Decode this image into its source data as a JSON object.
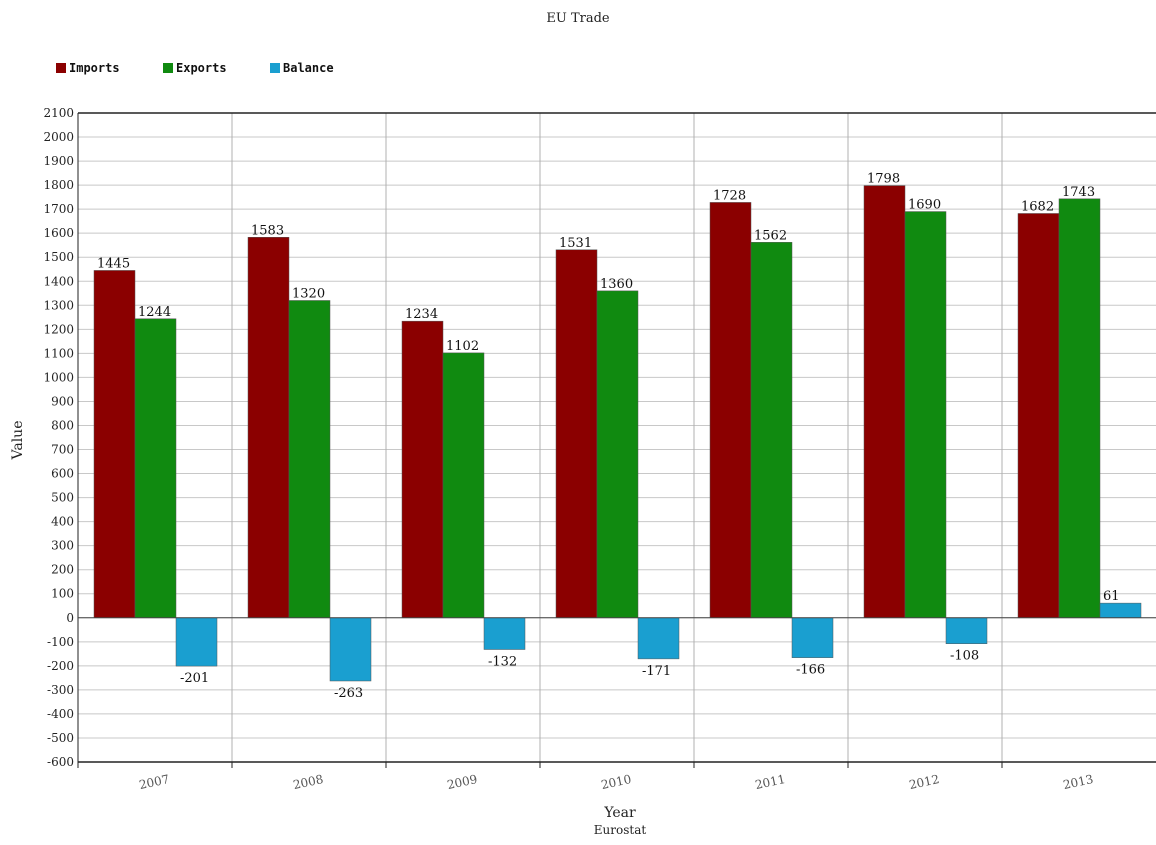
{
  "chart_data": {
    "type": "bar",
    "title": "EU Trade",
    "xlabel": "Year",
    "ylabel": "Value",
    "source": "Eurostat",
    "categories": [
      "2007",
      "2008",
      "2009",
      "2010",
      "2011",
      "2012",
      "2013"
    ],
    "series": [
      {
        "name": "Imports",
        "color": "#8b0000",
        "values": [
          1445,
          1583,
          1234,
          1531,
          1728,
          1798,
          1682
        ]
      },
      {
        "name": "Exports",
        "color": "#108a10",
        "values": [
          1244,
          1320,
          1102,
          1360,
          1562,
          1690,
          1743
        ]
      },
      {
        "name": "Balance",
        "color": "#1a9fd0",
        "values": [
          -201,
          -263,
          -132,
          -171,
          -166,
          -108,
          61
        ]
      }
    ],
    "ylim": [
      -600,
      2100
    ],
    "ytick_step": 100,
    "grid": true,
    "legend": "top-left"
  }
}
